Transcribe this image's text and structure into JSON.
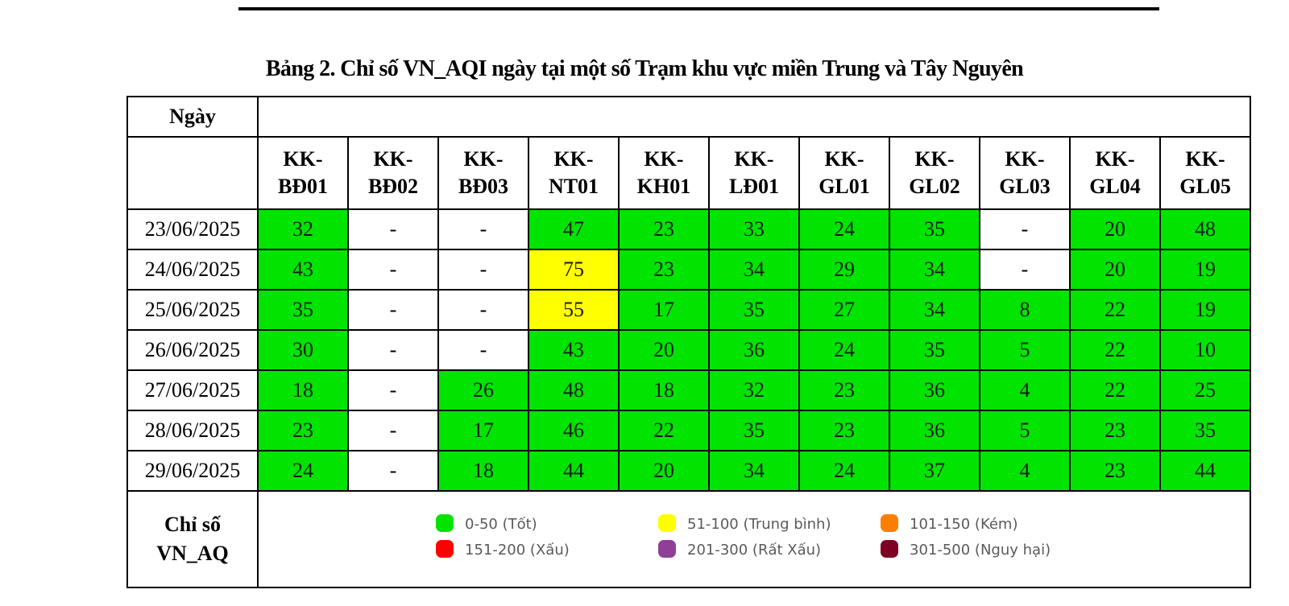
{
  "caption": "Bảng 2. Chỉ số VN_AQI ngày tại một số Trạm khu vực miền Trung và Tây Nguyên",
  "header": {
    "day_label": "Ngày",
    "stations": [
      [
        "KK-",
        "BĐ01"
      ],
      [
        "KK-",
        "BĐ02"
      ],
      [
        "KK-",
        "BĐ03"
      ],
      [
        "KK-",
        "NT01"
      ],
      [
        "KK-",
        "KH01"
      ],
      [
        "KK-",
        "LĐ01"
      ],
      [
        "KK-",
        "GL01"
      ],
      [
        "KK-",
        "GL02"
      ],
      [
        "KK-",
        "GL03"
      ],
      [
        "KK-",
        "GL04"
      ],
      [
        "KK-",
        "GL05"
      ]
    ]
  },
  "rows": [
    {
      "date": "23/06/2025",
      "values": [
        "32",
        "-",
        "-",
        "47",
        "23",
        "33",
        "24",
        "35",
        "-",
        "20",
        "48"
      ]
    },
    {
      "date": "24/06/2025",
      "values": [
        "43",
        "-",
        "-",
        "75",
        "23",
        "34",
        "29",
        "34",
        "-",
        "20",
        "19"
      ]
    },
    {
      "date": "25/06/2025",
      "values": [
        "35",
        "-",
        "-",
        "55",
        "17",
        "35",
        "27",
        "34",
        "8",
        "22",
        "19"
      ]
    },
    {
      "date": "26/06/2025",
      "values": [
        "30",
        "-",
        "-",
        "43",
        "20",
        "36",
        "24",
        "35",
        "5",
        "22",
        "10"
      ]
    },
    {
      "date": "27/06/2025",
      "values": [
        "18",
        "-",
        "26",
        "48",
        "18",
        "32",
        "23",
        "36",
        "4",
        "22",
        "25"
      ]
    },
    {
      "date": "28/06/2025",
      "values": [
        "23",
        "-",
        "17",
        "46",
        "22",
        "35",
        "23",
        "36",
        "5",
        "23",
        "35"
      ]
    },
    {
      "date": "29/06/2025",
      "values": [
        "24",
        "-",
        "18",
        "44",
        "20",
        "34",
        "24",
        "37",
        "4",
        "23",
        "44"
      ]
    }
  ],
  "legend": {
    "label_line1": "Chỉ số",
    "label_line2": "VN_AQ",
    "items": [
      {
        "text": "0-50 (Tốt)",
        "color": "#00e400"
      },
      {
        "text": "51-100 (Trung bình)",
        "color": "#ffff00"
      },
      {
        "text": "101-150 (Kém)",
        "color": "#ff7e00"
      },
      {
        "text": "151-200 (Xấu)",
        "color": "#ff0000"
      },
      {
        "text": "201-300 (Rất Xấu)",
        "color": "#8f3f97"
      },
      {
        "text": "301-500 (Nguy hại)",
        "color": "#7e0023"
      }
    ]
  }
}
